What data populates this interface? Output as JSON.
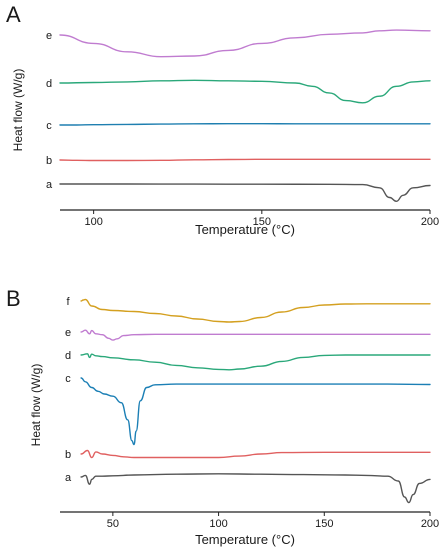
{
  "chart_data": [
    {
      "type": "line",
      "panel": "A",
      "xlabel": "Temperature (°C)",
      "ylabel": "Heat flow (W/g)",
      "xlim": [
        90,
        200
      ],
      "xticks": [
        "100",
        "150",
        "200"
      ],
      "xtick_values": [
        100,
        150,
        200
      ],
      "grid": false,
      "legend": "none",
      "series": [
        {
          "name": "a",
          "color": "#555555",
          "x": [
            90,
            110,
            130,
            150,
            170,
            180,
            185,
            188,
            190,
            192,
            195,
            200
          ],
          "y": [
            0.0,
            0.0,
            -0.01,
            -0.02,
            -0.04,
            -0.08,
            -0.5,
            -1.8,
            -2.3,
            -1.5,
            -0.5,
            -0.2
          ]
        },
        {
          "name": "b",
          "color": "#e06060",
          "x": [
            90,
            95,
            100,
            110,
            120,
            130,
            140,
            150,
            160,
            170,
            180,
            190,
            200
          ],
          "y": [
            0.0,
            -0.05,
            -0.1,
            -0.1,
            -0.05,
            0.05,
            0.1,
            0.15,
            0.15,
            0.15,
            0.15,
            0.15,
            0.15
          ]
        },
        {
          "name": "c",
          "color": "#1f7fb0",
          "x": [
            90,
            95,
            100,
            110,
            120,
            130,
            140,
            150,
            160,
            170,
            180,
            190,
            200
          ],
          "y": [
            0.0,
            0.0,
            0.05,
            0.1,
            0.15,
            0.2,
            0.22,
            0.22,
            0.2,
            0.2,
            0.2,
            0.2,
            0.2
          ]
        },
        {
          "name": "d",
          "color": "#2aa87a",
          "x": [
            90,
            100,
            110,
            120,
            130,
            140,
            150,
            160,
            165,
            170,
            175,
            180,
            185,
            190,
            195,
            200
          ],
          "y": [
            0.0,
            0.05,
            0.1,
            0.2,
            0.25,
            0.2,
            0.15,
            0.0,
            -0.3,
            -0.9,
            -1.6,
            -1.8,
            -1.2,
            -0.3,
            0.1,
            0.2
          ]
        },
        {
          "name": "e",
          "color": "#c07cd0",
          "x": [
            90,
            100,
            110,
            120,
            130,
            140,
            150,
            160,
            170,
            180,
            185,
            190,
            200
          ],
          "y": [
            0.0,
            -1.2,
            -2.4,
            -3.1,
            -3.0,
            -2.2,
            -1.2,
            -0.4,
            0.1,
            0.3,
            0.6,
            0.7,
            0.6
          ]
        }
      ]
    },
    {
      "type": "line",
      "panel": "B",
      "xlabel": "Temperature (°C)",
      "ylabel": "Heat flow (W/g)",
      "xlim": [
        25,
        200
      ],
      "xticks": [
        "50",
        "100",
        "150",
        "200"
      ],
      "xtick_values": [
        50,
        100,
        150,
        200
      ],
      "grid": false,
      "legend": "none",
      "series": [
        {
          "name": "a",
          "color": "#555555",
          "x": [
            35,
            37,
            39,
            40,
            42,
            45,
            50,
            60,
            80,
            100,
            120,
            140,
            160,
            170,
            180,
            185,
            188,
            190,
            192,
            195,
            200
          ],
          "y": [
            0.0,
            0.2,
            -0.9,
            -0.3,
            0.1,
            0.1,
            0.15,
            0.25,
            0.35,
            0.4,
            0.35,
            0.3,
            0.25,
            0.2,
            0.1,
            -0.5,
            -2.5,
            -3.2,
            -2.2,
            -0.8,
            -0.3
          ]
        },
        {
          "name": "b",
          "color": "#e06060",
          "x": [
            35,
            38,
            40,
            42,
            45,
            50,
            55,
            60,
            70,
            80,
            100,
            110,
            120,
            130,
            150,
            170,
            190,
            200
          ],
          "y": [
            0.0,
            0.5,
            -0.5,
            0.3,
            0.0,
            -0.2,
            -0.4,
            -0.5,
            -0.5,
            -0.5,
            -0.5,
            -0.3,
            0.0,
            0.2,
            0.25,
            0.25,
            0.25,
            0.25
          ]
        },
        {
          "name": "c",
          "color": "#1b7fb5",
          "x": [
            35,
            37,
            40,
            43,
            46,
            50,
            54,
            57,
            59,
            60,
            61,
            63,
            66,
            70,
            80,
            100,
            120,
            150,
            180,
            200
          ],
          "y": [
            0.0,
            -1.0,
            -2.5,
            -3.5,
            -4.2,
            -4.8,
            -6.5,
            -11.0,
            -16.5,
            -17.5,
            -14.0,
            -6.0,
            -2.5,
            -1.8,
            -1.6,
            -1.6,
            -1.6,
            -1.6,
            -1.6,
            -1.7
          ]
        },
        {
          "name": "d",
          "color": "#2aa87a",
          "x": [
            35,
            38,
            39,
            40,
            42,
            45,
            50,
            60,
            70,
            80,
            90,
            100,
            105,
            110,
            120,
            130,
            140,
            150,
            160,
            170,
            180,
            190,
            200
          ],
          "y": [
            0.0,
            0.3,
            -0.6,
            0.2,
            -0.2,
            -0.4,
            -0.7,
            -1.2,
            -1.8,
            -2.6,
            -3.2,
            -3.6,
            -3.7,
            -3.5,
            -2.8,
            -1.6,
            -0.6,
            -0.1,
            0.0,
            0.0,
            0.0,
            0.0,
            0.0
          ]
        },
        {
          "name": "e",
          "color": "#c07cd0",
          "x": [
            35,
            37,
            39,
            40,
            42,
            45,
            48,
            50,
            52,
            55,
            60,
            70,
            80,
            100,
            120,
            140,
            160,
            180,
            200
          ],
          "y": [
            0.0,
            0.4,
            -0.4,
            0.3,
            -0.4,
            -0.6,
            -1.4,
            -1.8,
            -1.5,
            -0.8,
            -0.6,
            -0.5,
            -0.5,
            -0.5,
            -0.5,
            -0.5,
            -0.5,
            -0.5,
            -0.5
          ]
        },
        {
          "name": "f",
          "color": "#d4a020",
          "x": [
            35,
            36,
            37,
            40,
            45,
            50,
            60,
            70,
            80,
            90,
            100,
            105,
            110,
            120,
            130,
            140,
            150,
            160,
            170,
            180,
            190,
            200
          ],
          "y": [
            0.0,
            0.2,
            0.3,
            -1.0,
            -1.7,
            -1.9,
            -2.1,
            -2.5,
            -3.0,
            -3.6,
            -4.1,
            -4.2,
            -4.1,
            -3.3,
            -2.2,
            -1.3,
            -0.8,
            -0.6,
            -0.55,
            -0.55,
            -0.55,
            -0.55
          ]
        }
      ]
    }
  ]
}
